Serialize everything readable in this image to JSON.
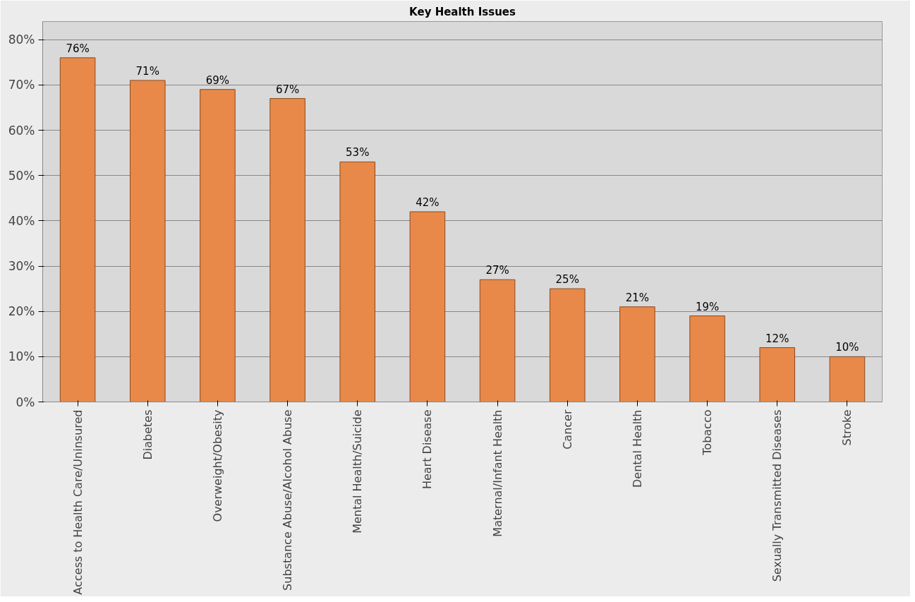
{
  "chart_data": {
    "type": "bar",
    "title": "Key Health Issues",
    "categories": [
      "Access to Health Care/Uninsured",
      "Diabetes",
      "Overweight/Obesity",
      "Substance Abuse/Alcohol Abuse",
      "Mental Health/Suicide",
      "Heart Disease",
      "Maternal/Infant Health",
      "Cancer",
      "Dental Health",
      "Tobacco",
      "Sexually Transmitted Diseases",
      "Stroke"
    ],
    "values": [
      76,
      71,
      69,
      67,
      53,
      42,
      27,
      25,
      21,
      19,
      12,
      10
    ],
    "value_labels": [
      "76%",
      "71%",
      "69%",
      "67%",
      "53%",
      "42%",
      "27%",
      "25%",
      "21%",
      "19%",
      "12%",
      "10%"
    ],
    "color": "#e8894a",
    "ylim": [
      0,
      80
    ],
    "yticks": [
      {
        "value": 0,
        "label": "0%"
      },
      {
        "value": 10,
        "label": "10%"
      },
      {
        "value": 20,
        "label": "20%"
      },
      {
        "value": 30,
        "label": "30%"
      },
      {
        "value": 40,
        "label": "40%"
      },
      {
        "value": 50,
        "label": "50%"
      },
      {
        "value": 60,
        "label": "60%"
      },
      {
        "value": 70,
        "label": "70%"
      },
      {
        "value": 80,
        "label": "80%"
      }
    ],
    "grid": "y"
  }
}
